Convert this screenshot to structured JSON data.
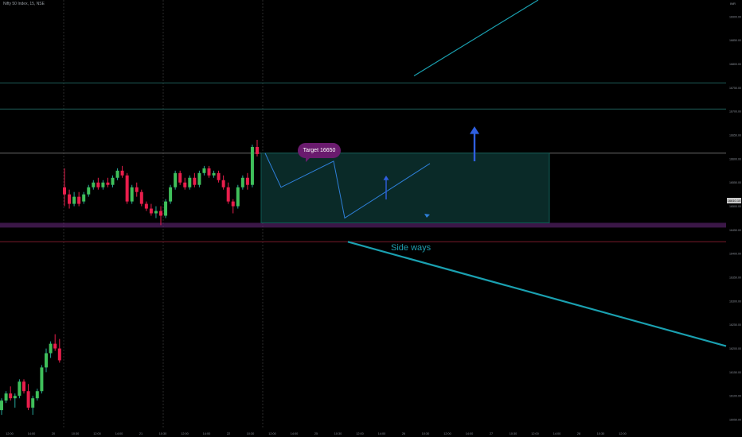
{
  "header": {
    "title": "Nifty 50 Index, 15, NSE",
    "currency": "INR"
  },
  "chart_data": {
    "type": "candlestick",
    "price_axis": {
      "ticks": [
        16900,
        16850,
        16800,
        16750,
        16700,
        16650,
        16600,
        16550,
        16500,
        16450,
        16400,
        16350,
        16300,
        16250,
        16200,
        16150,
        16100,
        16050
      ],
      "current_price_label": "16610.10",
      "range": [
        16030,
        16935
      ]
    },
    "time_axis": {
      "ticks": [
        "12:00",
        "14:00",
        "20",
        "10:30",
        "12:00",
        "14:00",
        "21",
        "10:30",
        "12:00",
        "14:00",
        "22",
        "10:30",
        "12:00",
        "14:00",
        "25",
        "10:30",
        "12:00",
        "14:00",
        "26",
        "10:30",
        "12:00",
        "14:00",
        "27",
        "10:30",
        "12:00",
        "14:00",
        "28",
        "10:30",
        "12:00"
      ],
      "session_separators": [
        "20",
        "21",
        "22"
      ]
    },
    "candles_upper": [
      {
        "o": 16540,
        "h": 16580,
        "c": 16525,
        "l": 16500
      },
      {
        "o": 16525,
        "h": 16535,
        "c": 16505,
        "l": 16495
      },
      {
        "o": 16505,
        "h": 16530,
        "c": 16520,
        "l": 16500
      },
      {
        "o": 16520,
        "h": 16530,
        "c": 16505,
        "l": 16500
      },
      {
        "o": 16510,
        "h": 16530,
        "c": 16525,
        "l": 16505
      },
      {
        "o": 16525,
        "h": 16545,
        "c": 16540,
        "l": 16520
      },
      {
        "o": 16540,
        "h": 16555,
        "c": 16550,
        "l": 16535
      },
      {
        "o": 16550,
        "h": 16560,
        "c": 16540,
        "l": 16535
      },
      {
        "o": 16540,
        "h": 16555,
        "c": 16550,
        "l": 16535
      },
      {
        "o": 16550,
        "h": 16560,
        "c": 16545,
        "l": 16540
      },
      {
        "o": 16545,
        "h": 16565,
        "c": 16560,
        "l": 16540
      },
      {
        "o": 16560,
        "h": 16580,
        "c": 16575,
        "l": 16555
      },
      {
        "o": 16575,
        "h": 16585,
        "c": 16565,
        "l": 16560
      },
      {
        "o": 16565,
        "h": 16570,
        "c": 16510,
        "l": 16505
      },
      {
        "o": 16510,
        "h": 16545,
        "c": 16540,
        "l": 16505
      },
      {
        "o": 16540,
        "h": 16550,
        "c": 16530,
        "l": 16520
      },
      {
        "o": 16530,
        "h": 16535,
        "c": 16505,
        "l": 16500
      },
      {
        "o": 16505,
        "h": 16510,
        "c": 16495,
        "l": 16490
      },
      {
        "o": 16495,
        "h": 16505,
        "c": 16485,
        "l": 16480
      },
      {
        "o": 16485,
        "h": 16500,
        "c": 16490,
        "l": 16475
      },
      {
        "o": 16490,
        "h": 16500,
        "c": 16480,
        "l": 16460
      },
      {
        "o": 16480,
        "h": 16515,
        "c": 16510,
        "l": 16475
      },
      {
        "o": 16510,
        "h": 16545,
        "c": 16540,
        "l": 16505
      },
      {
        "o": 16540,
        "h": 16575,
        "c": 16570,
        "l": 16535
      },
      {
        "o": 16570,
        "h": 16575,
        "c": 16550,
        "l": 16545
      },
      {
        "o": 16550,
        "h": 16560,
        "c": 16540,
        "l": 16535
      },
      {
        "o": 16540,
        "h": 16565,
        "c": 16560,
        "l": 16535
      },
      {
        "o": 16560,
        "h": 16570,
        "c": 16545,
        "l": 16540
      },
      {
        "o": 16545,
        "h": 16575,
        "c": 16570,
        "l": 16540
      },
      {
        "o": 16570,
        "h": 16585,
        "c": 16580,
        "l": 16565
      },
      {
        "o": 16580,
        "h": 16585,
        "c": 16565,
        "l": 16560
      },
      {
        "o": 16565,
        "h": 16575,
        "c": 16570,
        "l": 16560
      },
      {
        "o": 16570,
        "h": 16575,
        "c": 16555,
        "l": 16550
      },
      {
        "o": 16555,
        "h": 16565,
        "c": 16540,
        "l": 16535
      },
      {
        "o": 16540,
        "h": 16550,
        "c": 16510,
        "l": 16505
      },
      {
        "o": 16510,
        "h": 16515,
        "c": 16500,
        "l": 16485
      },
      {
        "o": 16500,
        "h": 16545,
        "c": 16540,
        "l": 16495
      },
      {
        "o": 16540,
        "h": 16565,
        "c": 16560,
        "l": 16535
      },
      {
        "o": 16560,
        "h": 16570,
        "c": 16545,
        "l": 16535
      },
      {
        "o": 16545,
        "h": 16630,
        "c": 16625,
        "l": 16540
      },
      {
        "o": 16625,
        "h": 16640,
        "c": 16610,
        "l": 16605
      }
    ],
    "candles_lower": [
      {
        "o": 16070,
        "h": 16095,
        "c": 16090,
        "l": 16060
      },
      {
        "o": 16090,
        "h": 16110,
        "c": 16105,
        "l": 16085
      },
      {
        "o": 16105,
        "h": 16120,
        "c": 16095,
        "l": 16090
      },
      {
        "o": 16095,
        "h": 16105,
        "c": 16100,
        "l": 16075
      },
      {
        "o": 16100,
        "h": 16135,
        "c": 16130,
        "l": 16095
      },
      {
        "o": 16130,
        "h": 16135,
        "c": 16110,
        "l": 16105
      },
      {
        "o": 16110,
        "h": 16125,
        "c": 16075,
        "l": 16070
      },
      {
        "o": 16075,
        "h": 16100,
        "c": 16095,
        "l": 16060
      },
      {
        "o": 16095,
        "h": 16115,
        "c": 16110,
        "l": 16090
      },
      {
        "o": 16110,
        "h": 16165,
        "c": 16160,
        "l": 16105
      },
      {
        "o": 16160,
        "h": 16200,
        "c": 16190,
        "l": 16150
      },
      {
        "o": 16190,
        "h": 16215,
        "c": 16210,
        "l": 16180
      },
      {
        "o": 16210,
        "h": 16230,
        "c": 16200,
        "l": 16195
      },
      {
        "o": 16200,
        "h": 16220,
        "c": 16175,
        "l": 16170
      }
    ],
    "levels": [
      {
        "price": 16760,
        "color": "#1d5c57"
      },
      {
        "price": 16705,
        "color": "#1d5c57"
      },
      {
        "price": 16612,
        "color": "#6b6b6b"
      },
      {
        "price": 16425,
        "color": "#7a1a2a"
      }
    ],
    "zone": {
      "from": 16455,
      "to": 16465,
      "color": "#6b2a82"
    },
    "range_box": {
      "from_price": 16612,
      "to_price": 16465,
      "color": "#0f5b54"
    },
    "annotations": {
      "target_label": "Target  16650",
      "side_ways_label": "Side ways"
    }
  }
}
